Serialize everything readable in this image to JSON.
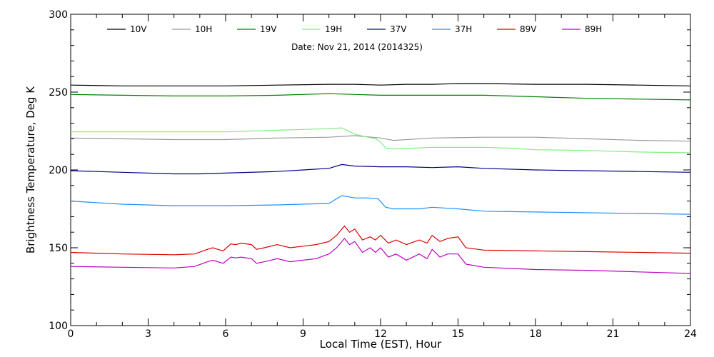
{
  "chart_data": {
    "type": "line",
    "subtitle": "Date: Nov 21, 2014 (2014325)",
    "xlabel": "Local Time (EST), Hour",
    "ylabel": "Brightness Temperature, Deg K",
    "xlim": [
      0,
      24
    ],
    "ylim": [
      100,
      300
    ],
    "xticks": [
      0,
      3,
      6,
      9,
      12,
      15,
      18,
      21,
      24
    ],
    "yticks": [
      100,
      150,
      200,
      250,
      300
    ],
    "xtick_labels": [
      "0",
      "3",
      "6",
      "9",
      "12",
      "15",
      "18",
      "21",
      "24"
    ],
    "ytick_labels": [
      "100",
      "150",
      "200",
      "250",
      "300"
    ],
    "grid": false,
    "legend_position": "top",
    "series": [
      {
        "name": "10V",
        "color": "#000000",
        "x": [
          0,
          2,
          4,
          6,
          8,
          10,
          11,
          12,
          13,
          14,
          15,
          16,
          18,
          20,
          22,
          24
        ],
        "values": [
          254.5,
          254,
          254,
          254,
          254.5,
          255,
          255,
          254.5,
          255,
          255,
          255.5,
          255.5,
          255,
          255,
          254.5,
          254
        ]
      },
      {
        "name": "10H",
        "color": "#999999",
        "x": [
          0,
          2,
          4,
          6,
          8,
          10,
          11,
          12,
          12.5,
          14,
          16,
          18,
          20,
          22,
          24
        ],
        "values": [
          220.5,
          220,
          219.5,
          219.5,
          220.5,
          221,
          222,
          220.5,
          219,
          220.5,
          221,
          221,
          220,
          219,
          218.5
        ]
      },
      {
        "name": "19V",
        "color": "#008000",
        "x": [
          0,
          2,
          4,
          6,
          8,
          10,
          11,
          12,
          14,
          16,
          18,
          20,
          22,
          24
        ],
        "values": [
          248.5,
          248,
          247.5,
          247.5,
          248,
          249,
          248.5,
          248,
          248,
          248,
          247,
          246,
          245.5,
          245
        ]
      },
      {
        "name": "19H",
        "color": "#80ee80",
        "x": [
          0,
          2,
          4,
          6,
          8,
          10,
          10.5,
          11,
          11.5,
          11.8,
          12,
          12.2,
          12.5,
          14,
          16,
          17,
          18,
          20,
          22,
          24
        ],
        "values": [
          224.5,
          224.5,
          224.5,
          224.5,
          225.5,
          226.5,
          227,
          223,
          221,
          220,
          218,
          214,
          213.5,
          214.5,
          214.5,
          214,
          213,
          212.5,
          211.5,
          211
        ]
      },
      {
        "name": "37V",
        "color": "#00008b",
        "x": [
          0,
          2,
          4,
          5,
          6,
          8,
          9,
          10,
          10.5,
          11,
          12,
          13,
          14,
          15,
          16,
          18,
          20,
          22,
          24
        ],
        "values": [
          199.5,
          198.5,
          197.5,
          197.5,
          198,
          199,
          200,
          201,
          203.5,
          202.5,
          202,
          202,
          201.5,
          202,
          201,
          200,
          199.5,
          199,
          198.5
        ]
      },
      {
        "name": "37H",
        "color": "#1e90ff",
        "x": [
          0,
          1,
          2,
          4,
          6,
          8,
          10,
          10.5,
          11,
          11.5,
          11.9,
          12.2,
          12.5,
          13.5,
          14,
          15,
          16,
          18,
          20,
          22,
          24
        ],
        "values": [
          180,
          179,
          178,
          177,
          177,
          177.5,
          178.5,
          183.5,
          182,
          182,
          181.5,
          176,
          175,
          175,
          176,
          175,
          173.5,
          173,
          172.5,
          172,
          171.5
        ]
      },
      {
        "name": "89V",
        "color": "#dd0000",
        "x": [
          0,
          2,
          4,
          4.8,
          5.3,
          5.5,
          5.9,
          6.2,
          6.4,
          6.6,
          7,
          7.2,
          7.5,
          8,
          8.5,
          9,
          9.5,
          10,
          10.3,
          10.6,
          10.8,
          11,
          11.3,
          11.6,
          11.8,
          12,
          12.3,
          12.6,
          13,
          13.5,
          13.8,
          14,
          14.3,
          14.6,
          15,
          15.3,
          16,
          18,
          20,
          22,
          24
        ],
        "values": [
          147,
          146,
          145.5,
          146,
          149,
          150,
          148,
          152.5,
          152,
          153,
          152,
          149,
          150,
          152,
          150,
          151,
          152,
          154,
          158,
          164,
          160,
          162,
          155,
          157,
          155,
          158,
          153,
          155,
          152,
          155,
          153,
          158,
          154,
          156,
          157,
          150,
          148.5,
          148,
          147.5,
          147,
          146.5
        ]
      },
      {
        "name": "89H",
        "color": "#c000c0",
        "x": [
          0,
          2,
          4,
          4.8,
          5.3,
          5.5,
          5.9,
          6.2,
          6.4,
          6.6,
          7,
          7.2,
          7.5,
          8,
          8.5,
          9,
          9.5,
          10,
          10.3,
          10.6,
          10.8,
          11,
          11.3,
          11.6,
          11.8,
          12,
          12.3,
          12.6,
          13,
          13.5,
          13.8,
          14,
          14.3,
          14.6,
          15,
          15.3,
          16,
          18,
          20,
          22,
          24
        ],
        "values": [
          138,
          137.5,
          137,
          138,
          141,
          142,
          140,
          144,
          143.5,
          144,
          143,
          140,
          141,
          143,
          141,
          142,
          143,
          146,
          150,
          156,
          152,
          154,
          147,
          150,
          147,
          150,
          144,
          146,
          142,
          146,
          143,
          149,
          144,
          146,
          146,
          139.5,
          137.5,
          136,
          135.5,
          134.5,
          133.5
        ]
      }
    ]
  }
}
